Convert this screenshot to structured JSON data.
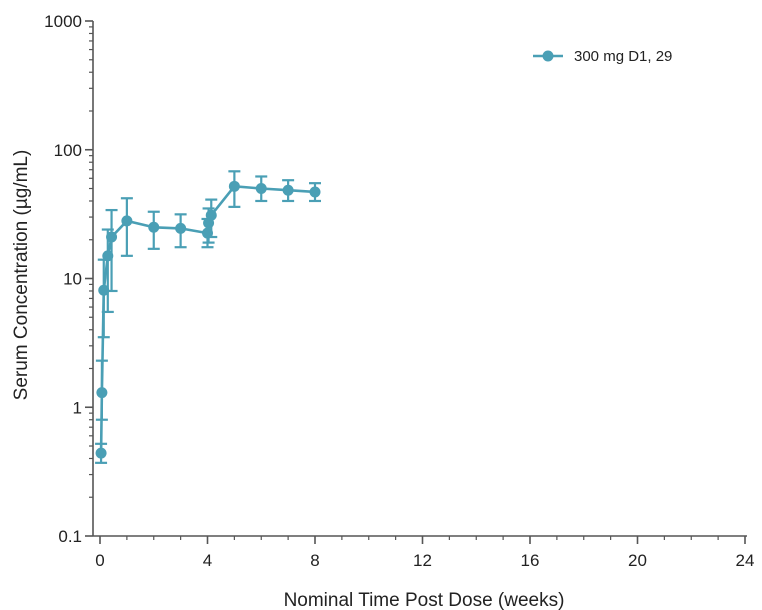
{
  "chart_data": {
    "type": "line",
    "title": "",
    "xlabel": "Nominal Time Post Dose (weeks)",
    "ylabel": "Serum Concentration (µg/mL)",
    "xlim": [
      0,
      24
    ],
    "ylim": [
      0.1,
      1000
    ],
    "yscale": "log",
    "grid": false,
    "legend_position": "top-right",
    "x_ticks": [
      "0",
      "4",
      "8",
      "12",
      "16",
      "20",
      "24"
    ],
    "x_tick_values": [
      0,
      4,
      8,
      12,
      16,
      20,
      24
    ],
    "y_ticks": [
      "0.1",
      "1",
      "10",
      "100",
      "1000"
    ],
    "y_tick_values": [
      0.1,
      1,
      10,
      100,
      1000
    ],
    "series": [
      {
        "name": "300 mg D1, 29",
        "color": "#4a9fb5",
        "marker": "circle",
        "x": [
          0.04,
          0.07,
          0.14,
          0.29,
          0.43,
          1,
          2,
          3,
          4,
          4.04,
          4.14,
          5,
          6,
          7,
          8
        ],
        "y": [
          0.44,
          1.3,
          8.1,
          15,
          21,
          28,
          25,
          24.5,
          22.5,
          27,
          31,
          52,
          50,
          48.5,
          47
        ],
        "lower": [
          0.37,
          0.8,
          3.5,
          5.5,
          8,
          15,
          17,
          17.5,
          17.5,
          19,
          21,
          36,
          40,
          40,
          40
        ],
        "upper": [
          0.52,
          2.3,
          14,
          24,
          34,
          42,
          33,
          31.5,
          29,
          35,
          41,
          68,
          62,
          58,
          55
        ]
      }
    ]
  }
}
